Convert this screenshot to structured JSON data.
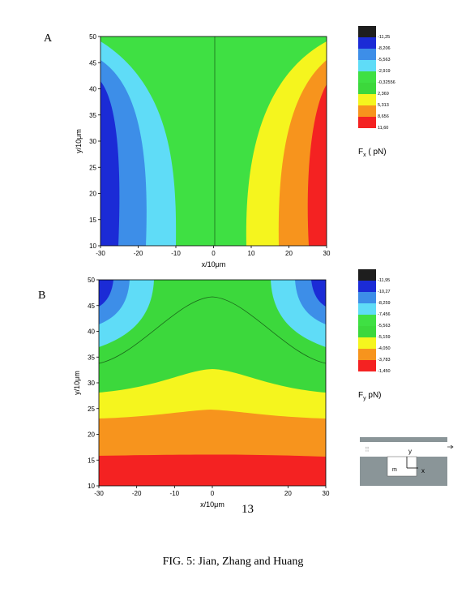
{
  "panels": [
    {
      "letter": "A",
      "legend_title": "F",
      "legend_sub": "x",
      "legend_unit": "( pN)",
      "legend_labels": [
        "-11,25",
        "-8,206",
        "-5,563",
        "-2,919",
        "-0,32556",
        "2,369",
        "5,313",
        "8,656",
        "11,60"
      ]
    },
    {
      "letter": "B",
      "legend_title": "F",
      "legend_sub": "y",
      "legend_unit": "pN)",
      "legend_labels": [
        "-11,95",
        "-10,27",
        "-8,259",
        "-7,456",
        "-5,563",
        "-5,159",
        "-4,050",
        "-3,783",
        "-1,450"
      ]
    }
  ],
  "page_number": "13",
  "caption": "FIG. 5: Jian, Zhang and Huang",
  "inset": {
    "label_y": "y",
    "label_x": "x",
    "label_m": "m"
  },
  "colors": {
    "levels": [
      "#1e1e1e",
      "#1b2bd6",
      "#3d8ee8",
      "#5fdcf7",
      "#3fe043",
      "#3cd83c",
      "#f5f51e",
      "#f7941d",
      "#f42222"
    ],
    "inset_gray": "#8a9598"
  },
  "chart_data": [
    {
      "type": "heatmap",
      "title": "",
      "xlabel": "x/10μm",
      "ylabel": "y/10μm",
      "xlim": [
        -30,
        30
      ],
      "ylim": [
        10,
        50
      ],
      "xticks": [
        -30,
        -20,
        -10,
        0,
        10,
        20,
        30
      ],
      "yticks": [
        10,
        15,
        20,
        25,
        30,
        35,
        40,
        45,
        50
      ],
      "legend": "F_x ( pN)",
      "levels": [
        -11.25,
        -8.206,
        -5.563,
        -2.919,
        -0.32556,
        2.369,
        5.313,
        8.656,
        11.6
      ]
    },
    {
      "type": "heatmap",
      "title": "",
      "xlabel": "x/10μm",
      "ylabel": "y/10μm",
      "xlim": [
        -30,
        30
      ],
      "ylim": [
        10,
        50
      ],
      "xticks": [
        -30,
        -20,
        -10,
        0,
        20,
        30
      ],
      "yticks": [
        10,
        15,
        20,
        25,
        30,
        35,
        40,
        45,
        50
      ],
      "legend": "F_y pN)",
      "levels": [
        -11.95,
        -10.27,
        -8.259,
        -7.456,
        -5.563,
        -5.159,
        -4.05,
        -3.783,
        -1.45
      ]
    }
  ]
}
